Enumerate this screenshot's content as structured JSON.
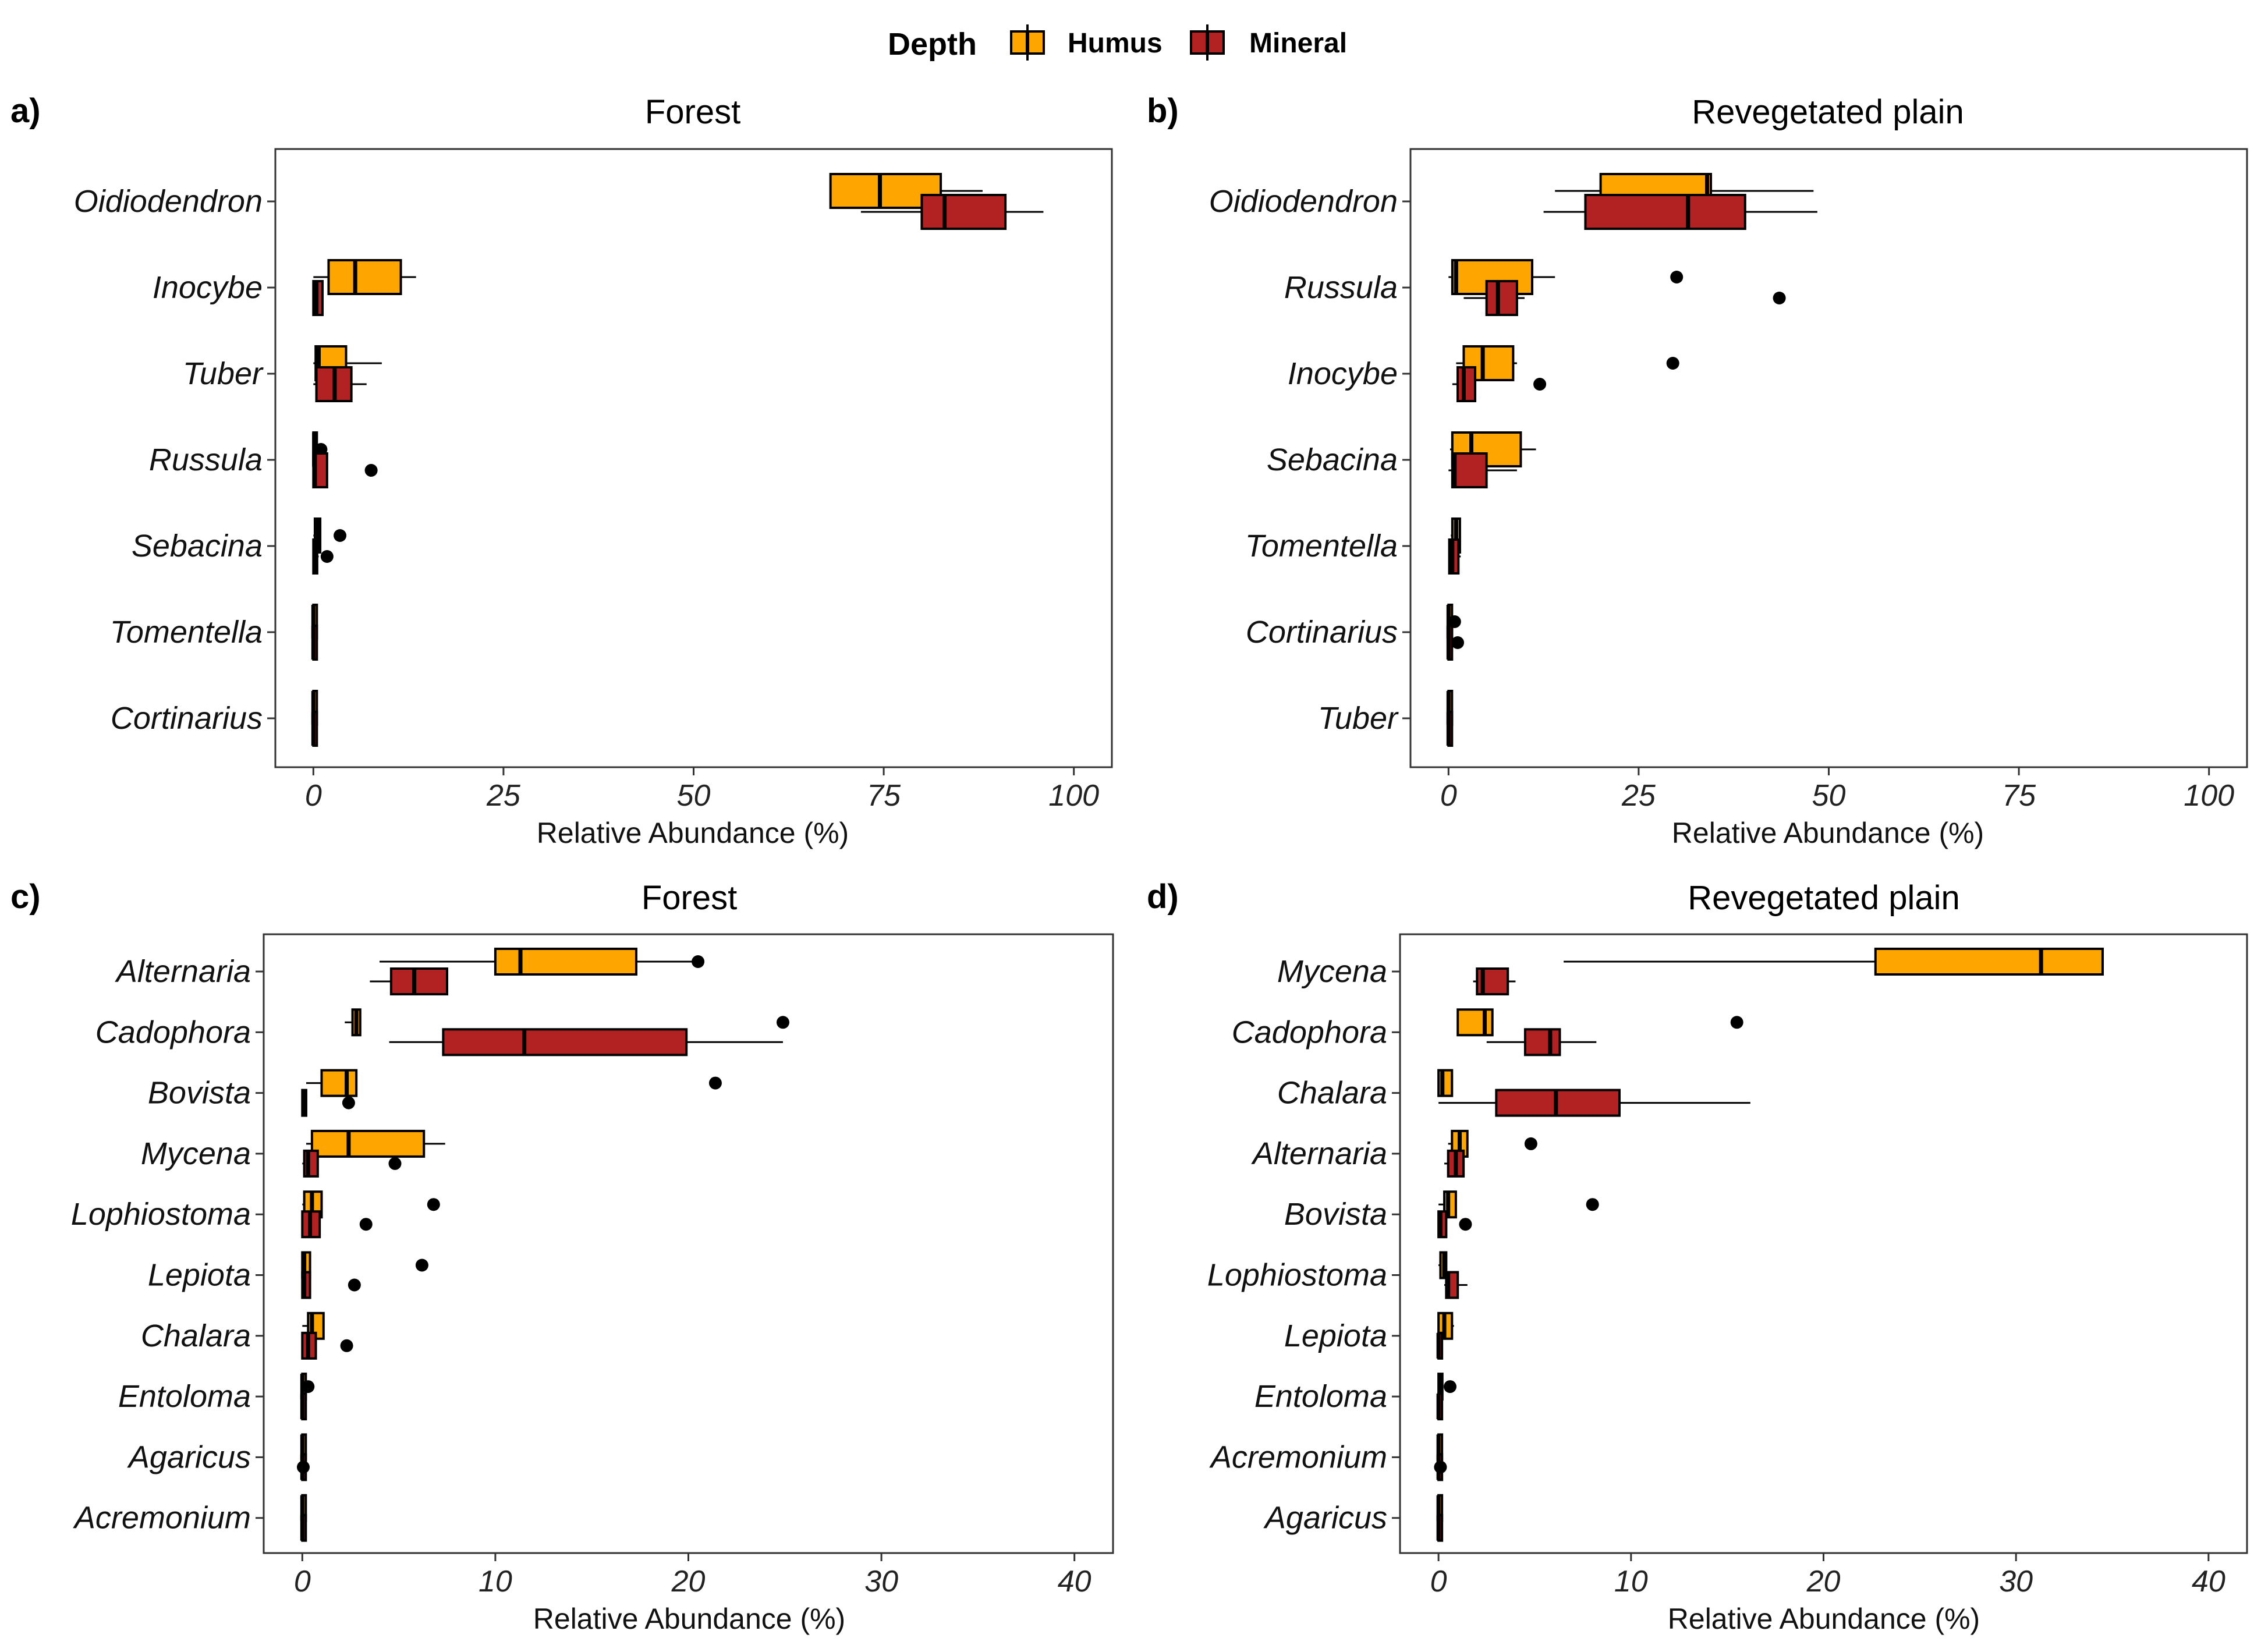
{
  "colors": {
    "humus": "#FFA500",
    "mineral": "#B22222",
    "outlier": "#000000",
    "frame": "#333333"
  },
  "legend": {
    "title": "Depth",
    "items": [
      {
        "label": "Humus",
        "color": "#FFA500"
      },
      {
        "label": "Mineral",
        "color": "#B22222"
      }
    ]
  },
  "chart_data": [
    {
      "type": "boxplot",
      "tag": "a)",
      "title": "Forest",
      "xlabel": "Relative Abundance (%)",
      "xlim": [
        -5,
        105
      ],
      "xticks": [
        0,
        25,
        50,
        75,
        100
      ],
      "categories": [
        {
          "name": "Oidiodendron",
          "humus": {
            "min": 68,
            "q1": 68,
            "median": 74.5,
            "q3": 82.5,
            "max": 88,
            "outliers": []
          },
          "mineral": {
            "min": 72,
            "q1": 80,
            "median": 83,
            "q3": 91,
            "max": 96,
            "outliers": []
          }
        },
        {
          "name": "Inocybe",
          "humus": {
            "min": 0,
            "q1": 2,
            "median": 5.5,
            "q3": 11.5,
            "max": 13.5,
            "outliers": []
          },
          "mineral": {
            "min": 0,
            "q1": 0,
            "median": 0.4,
            "q3": 1.2,
            "max": 1.2,
            "outliers": []
          }
        },
        {
          "name": "Tuber",
          "humus": {
            "min": 0,
            "q1": 0.3,
            "median": 0.7,
            "q3": 4.3,
            "max": 9,
            "outliers": []
          },
          "mineral": {
            "min": 0,
            "q1": 0.4,
            "median": 2.8,
            "q3": 5,
            "max": 7,
            "outliers": []
          }
        },
        {
          "name": "Russula",
          "humus": {
            "min": 0,
            "q1": 0,
            "median": 0.1,
            "q3": 0.3,
            "max": 0.5,
            "outliers": [
              1
            ]
          },
          "mineral": {
            "min": 0,
            "q1": 0,
            "median": 0.2,
            "q3": 1.8,
            "max": 1.8,
            "outliers": [
              7.6
            ]
          }
        },
        {
          "name": "Sebacina",
          "humus": {
            "min": 0,
            "q1": 0.2,
            "median": 0.6,
            "q3": 0.9,
            "max": 1,
            "outliers": [
              3.5
            ]
          },
          "mineral": {
            "min": 0,
            "q1": 0,
            "median": 0.2,
            "q3": 0.5,
            "max": 0.7,
            "outliers": [
              1.8
            ]
          }
        },
        {
          "name": "Tomentella",
          "humus": {
            "min": 0,
            "q1": 0,
            "median": 0,
            "q3": 0.1,
            "max": 0.1,
            "outliers": []
          },
          "mineral": {
            "min": 0,
            "q1": 0,
            "median": 0,
            "q3": 0.1,
            "max": 0.1,
            "outliers": []
          }
        },
        {
          "name": "Cortinarius",
          "humus": {
            "min": 0,
            "q1": 0,
            "median": 0,
            "q3": 0.1,
            "max": 0.1,
            "outliers": []
          },
          "mineral": {
            "min": 0,
            "q1": 0,
            "median": 0,
            "q3": 0.1,
            "max": 0.1,
            "outliers": []
          }
        }
      ]
    },
    {
      "type": "boxplot",
      "tag": "b)",
      "title": "Revegetated plain",
      "xlabel": "Relative Abundance (%)",
      "xlim": [
        -5,
        105
      ],
      "xticks": [
        0,
        25,
        50,
        75,
        100
      ],
      "categories": [
        {
          "name": "Oidiodendron",
          "humus": {
            "min": 14,
            "q1": 20,
            "median": 34,
            "q3": 34.5,
            "max": 48,
            "outliers": []
          },
          "mineral": {
            "min": 12.5,
            "q1": 18,
            "median": 31.5,
            "q3": 39,
            "max": 48.5,
            "outliers": []
          }
        },
        {
          "name": "Russula",
          "humus": {
            "min": 0,
            "q1": 0.5,
            "median": 1,
            "q3": 11,
            "max": 14,
            "outliers": [
              30
            ]
          },
          "mineral": {
            "min": 2,
            "q1": 5,
            "median": 6.5,
            "q3": 9,
            "max": 10,
            "outliers": [
              43.5
            ]
          }
        },
        {
          "name": "Inocybe",
          "humus": {
            "min": 1,
            "q1": 2,
            "median": 4.5,
            "q3": 8.5,
            "max": 9,
            "outliers": [
              29.5
            ]
          },
          "mineral": {
            "min": 0.5,
            "q1": 1.2,
            "median": 2,
            "q3": 3.5,
            "max": 3.5,
            "outliers": [
              12
            ]
          }
        },
        {
          "name": "Sebacina",
          "humus": {
            "min": 0.2,
            "q1": 0.5,
            "median": 3,
            "q3": 9.5,
            "max": 11.5,
            "outliers": []
          },
          "mineral": {
            "min": 0,
            "q1": 0.5,
            "median": 0.8,
            "q3": 5,
            "max": 9,
            "outliers": []
          }
        },
        {
          "name": "Tomentella",
          "humus": {
            "min": 0.3,
            "q1": 0.5,
            "median": 1,
            "q3": 1.5,
            "max": 1.5,
            "outliers": []
          },
          "mineral": {
            "min": 0,
            "q1": 0.1,
            "median": 0.5,
            "q3": 1.3,
            "max": 1.6,
            "outliers": []
          }
        },
        {
          "name": "Cortinarius",
          "humus": {
            "min": 0,
            "q1": 0,
            "median": 0,
            "q3": 0.1,
            "max": 0.2,
            "outliers": [
              0.8
            ]
          },
          "mineral": {
            "min": 0,
            "q1": 0,
            "median": 0,
            "q3": 0.1,
            "max": 0.2,
            "outliers": [
              1.2
            ]
          }
        },
        {
          "name": "Tuber",
          "humus": {
            "min": 0,
            "q1": 0,
            "median": 0,
            "q3": 0.1,
            "max": 0.1,
            "outliers": []
          },
          "mineral": {
            "min": 0,
            "q1": 0,
            "median": 0,
            "q3": 0.1,
            "max": 0.1,
            "outliers": []
          }
        }
      ]
    },
    {
      "type": "boxplot",
      "tag": "c)",
      "title": "Forest",
      "xlabel": "Relative Abundance (%)",
      "xlim": [
        -2,
        42
      ],
      "xticks": [
        0,
        10,
        20,
        30,
        40
      ],
      "categories": [
        {
          "name": "Alternaria",
          "humus": {
            "min": 4,
            "q1": 10,
            "median": 11.3,
            "q3": 17.3,
            "max": 20.5,
            "outliers": [
              20.5
            ]
          },
          "mineral": {
            "min": 3.5,
            "q1": 4.6,
            "median": 5.8,
            "q3": 7.5,
            "max": 7.5,
            "outliers": []
          }
        },
        {
          "name": "Cadophora",
          "humus": {
            "min": 2.2,
            "q1": 2.6,
            "median": 2.8,
            "q3": 3,
            "max": 3,
            "outliers": [
              24.9
            ]
          },
          "mineral": {
            "min": 4.5,
            "q1": 7.3,
            "median": 11.5,
            "q3": 19.9,
            "max": 24.9,
            "outliers": []
          }
        },
        {
          "name": "Bovista",
          "humus": {
            "min": 0.2,
            "q1": 1,
            "median": 2.3,
            "q3": 2.8,
            "max": 2.8,
            "outliers": [
              21.4
            ]
          },
          "mineral": {
            "min": 0,
            "q1": 0,
            "median": 0.1,
            "q3": 0.2,
            "max": 0.2,
            "outliers": [
              2.4
            ]
          }
        },
        {
          "name": "Mycena",
          "humus": {
            "min": 0.2,
            "q1": 0.5,
            "median": 2.4,
            "q3": 6.3,
            "max": 7.4,
            "outliers": []
          },
          "mineral": {
            "min": 0,
            "q1": 0.1,
            "median": 0.3,
            "q3": 0.8,
            "max": 0.8,
            "outliers": [
              4.8
            ]
          }
        },
        {
          "name": "Lophiostoma",
          "humus": {
            "min": 0,
            "q1": 0.1,
            "median": 0.5,
            "q3": 1,
            "max": 1,
            "outliers": [
              6.8
            ]
          },
          "mineral": {
            "min": 0,
            "q1": 0,
            "median": 0.4,
            "q3": 0.9,
            "max": 0.9,
            "outliers": [
              3.3
            ]
          }
        },
        {
          "name": "Lepiota",
          "humus": {
            "min": 0,
            "q1": 0,
            "median": 0.1,
            "q3": 0.4,
            "max": 0.4,
            "outliers": [
              6.2
            ]
          },
          "mineral": {
            "min": 0,
            "q1": 0,
            "median": 0.1,
            "q3": 0.4,
            "max": 0.4,
            "outliers": [
              2.7
            ]
          }
        },
        {
          "name": "Chalara",
          "humus": {
            "min": 0,
            "q1": 0.3,
            "median": 0.5,
            "q3": 1.1,
            "max": 1.1,
            "outliers": []
          },
          "mineral": {
            "min": 0,
            "q1": 0,
            "median": 0.3,
            "q3": 0.7,
            "max": 0.7,
            "outliers": [
              2.3
            ]
          }
        },
        {
          "name": "Entoloma",
          "humus": {
            "min": 0,
            "q1": 0,
            "median": 0,
            "q3": 0.1,
            "max": 0.1,
            "outliers": [
              0.3
            ]
          },
          "mineral": {
            "min": 0,
            "q1": 0,
            "median": 0,
            "q3": 0.1,
            "max": 0.1,
            "outliers": []
          }
        },
        {
          "name": "Agaricus",
          "humus": {
            "min": 0,
            "q1": 0,
            "median": 0,
            "q3": 0.05,
            "max": 0.05,
            "outliers": []
          },
          "mineral": {
            "min": 0,
            "q1": 0,
            "median": 0,
            "q3": 0.05,
            "max": 0.05,
            "outliers": [
              0.05
            ]
          }
        },
        {
          "name": "Acremonium",
          "humus": {
            "min": 0,
            "q1": 0,
            "median": 0,
            "q3": 0.05,
            "max": 0.05,
            "outliers": []
          },
          "mineral": {
            "min": 0,
            "q1": 0,
            "median": 0,
            "q3": 0.05,
            "max": 0.05,
            "outliers": []
          }
        }
      ]
    },
    {
      "type": "boxplot",
      "tag": "d)",
      "title": "Revegetated plain",
      "xlabel": "Relative Abundance (%)",
      "xlim": [
        -2,
        42
      ],
      "xticks": [
        0,
        10,
        20,
        30,
        40
      ],
      "categories": [
        {
          "name": "Mycena",
          "humus": {
            "min": 6.5,
            "q1": 22.7,
            "median": 31.3,
            "q3": 34.5,
            "max": 34.5,
            "outliers": []
          },
          "mineral": {
            "min": 1.8,
            "q1": 2,
            "median": 2.3,
            "q3": 3.6,
            "max": 4,
            "outliers": []
          }
        },
        {
          "name": "Cadophora",
          "humus": {
            "min": 1,
            "q1": 1,
            "median": 2.4,
            "q3": 2.8,
            "max": 2.8,
            "outliers": [
              15.5
            ]
          },
          "mineral": {
            "min": 2.5,
            "q1": 4.5,
            "median": 5.8,
            "q3": 6.3,
            "max": 8.2,
            "outliers": []
          }
        },
        {
          "name": "Chalara",
          "humus": {
            "min": 0,
            "q1": 0,
            "median": 0.2,
            "q3": 0.7,
            "max": 0.7,
            "outliers": []
          },
          "mineral": {
            "min": 0,
            "q1": 3,
            "median": 6.1,
            "q3": 9.4,
            "max": 16.2,
            "outliers": []
          }
        },
        {
          "name": "Alternaria",
          "humus": {
            "min": 0.5,
            "q1": 0.7,
            "median": 1.1,
            "q3": 1.5,
            "max": 1.5,
            "outliers": [
              4.8
            ]
          },
          "mineral": {
            "min": 0.3,
            "q1": 0.5,
            "median": 0.9,
            "q3": 1.3,
            "max": 1.3,
            "outliers": []
          }
        },
        {
          "name": "Bovista",
          "humus": {
            "min": 0,
            "q1": 0.3,
            "median": 0.5,
            "q3": 0.9,
            "max": 0.9,
            "outliers": [
              8
            ]
          },
          "mineral": {
            "min": 0,
            "q1": 0,
            "median": 0.1,
            "q3": 0.4,
            "max": 0.4,
            "outliers": [
              1.4
            ]
          }
        },
        {
          "name": "Lophiostoma",
          "humus": {
            "min": 0,
            "q1": 0.1,
            "median": 0.3,
            "q3": 0.4,
            "max": 0.4,
            "outliers": []
          },
          "mineral": {
            "min": 0.3,
            "q1": 0.4,
            "median": 0.5,
            "q3": 1,
            "max": 1.5,
            "outliers": []
          }
        },
        {
          "name": "Lepiota",
          "humus": {
            "min": 0,
            "q1": 0,
            "median": 0.3,
            "q3": 0.7,
            "max": 0.8,
            "outliers": []
          },
          "mineral": {
            "min": 0,
            "q1": 0,
            "median": 0,
            "q3": 0.1,
            "max": 0.1,
            "outliers": []
          }
        },
        {
          "name": "Entoloma",
          "humus": {
            "min": 0,
            "q1": 0,
            "median": 0.1,
            "q3": 0.2,
            "max": 0.2,
            "outliers": [
              0.6
            ]
          },
          "mineral": {
            "min": 0,
            "q1": 0,
            "median": 0,
            "q3": 0.1,
            "max": 0.1,
            "outliers": []
          }
        },
        {
          "name": "Acremonium",
          "humus": {
            "min": 0,
            "q1": 0,
            "median": 0,
            "q3": 0.1,
            "max": 0.1,
            "outliers": []
          },
          "mineral": {
            "min": 0,
            "q1": 0,
            "median": 0,
            "q3": 0.1,
            "max": 0.1,
            "outliers": [
              0.1
            ]
          }
        },
        {
          "name": "Agaricus",
          "humus": {
            "min": 0,
            "q1": 0,
            "median": 0,
            "q3": 0.05,
            "max": 0.05,
            "outliers": []
          },
          "mineral": {
            "min": 0,
            "q1": 0,
            "median": 0,
            "q3": 0.05,
            "max": 0.05,
            "outliers": []
          }
        }
      ]
    }
  ]
}
